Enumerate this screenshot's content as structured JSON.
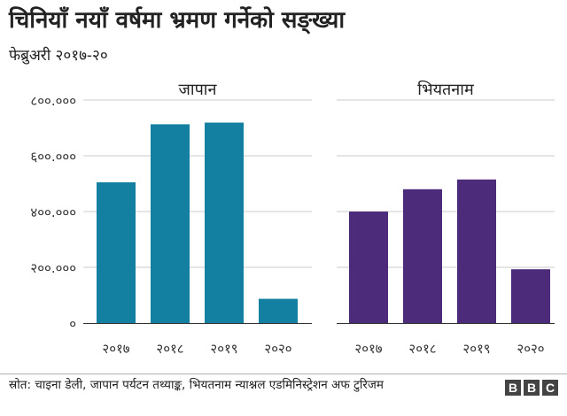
{
  "header": {
    "title": "चिनियाँ नयाँ वर्षमा भ्रमण गर्नेको सङ्ख्या",
    "subtitle": "फेब्रुअरी २०१७-२०"
  },
  "chart_data": [
    {
      "type": "bar",
      "title": "जापान",
      "categories": [
        "२०१७",
        "२०१८",
        "२०१९",
        "२०२०"
      ],
      "values": [
        505000,
        713000,
        719000,
        87000
      ],
      "ylim": [
        0,
        800000
      ],
      "yticks": [
        0,
        200000,
        400000,
        600000,
        800000
      ],
      "ytick_labels": [
        "०",
        "२००.०००",
        "४००.०००",
        "६००.०००",
        "८००.०००"
      ],
      "grid": true,
      "color": "#1380a1"
    },
    {
      "type": "bar",
      "title": "भियतनाम",
      "categories": [
        "२०१७",
        "२०१८",
        "२०१९",
        "२०२०"
      ],
      "values": [
        400000,
        480000,
        515000,
        193000
      ],
      "ylim": [
        0,
        800000
      ],
      "grid": true,
      "color": "#4c2c7a"
    }
  ],
  "footer": {
    "source": "स्रोत: चाइना डेली, जापान पर्यटन तथ्याङ्क, भियतनाम न्याश्नल एडमिनिस्ट्रेशन अफ टुरिजम",
    "logo_letters": [
      "B",
      "B",
      "C"
    ]
  }
}
